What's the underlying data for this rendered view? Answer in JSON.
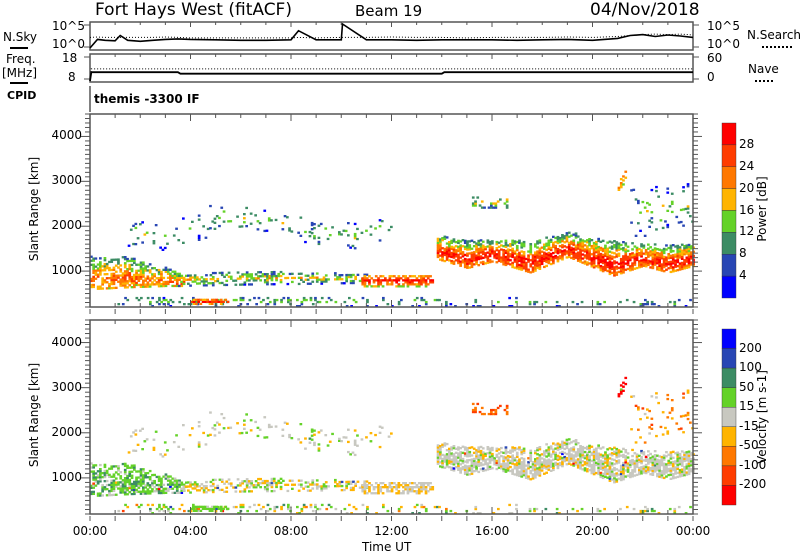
{
  "header": {
    "title": "Fort Hays West (fitACF)",
    "beam": "Beam 19",
    "date": "04/Nov/2018"
  },
  "noise_panel": {
    "left_label": "N.Sky",
    "right_label": "N.Search",
    "left_ticks": [
      "10^5",
      "10^0"
    ],
    "right_ticks": [
      "10^5",
      "10^0"
    ],
    "log_range": [
      0,
      5
    ],
    "hours": [
      0,
      0.3,
      0.6,
      1,
      1.2,
      1.5,
      2,
      2.5,
      3,
      3.5,
      4,
      5,
      6,
      7,
      8,
      8.3,
      9,
      10,
      10.05,
      11,
      12,
      13,
      14,
      15,
      16,
      17,
      18,
      19,
      20,
      21,
      21.5,
      22,
      22.5,
      23,
      23.5,
      24
    ],
    "nsky": [
      0,
      1.8,
      1.6,
      1.5,
      2.6,
      1.6,
      1.4,
      1.6,
      1.8,
      1.9,
      1.8,
      1.7,
      1.6,
      1.6,
      1.7,
      3.6,
      1.7,
      1.7,
      5.0,
      1.7,
      1.7,
      1.6,
      1.7,
      1.7,
      1.7,
      1.6,
      1.7,
      1.8,
      1.6,
      2.0,
      2.6,
      2.8,
      2.4,
      2.7,
      2.5,
      2.2
    ],
    "nsearch": [
      2.2,
      2.3,
      2.2,
      2.2,
      2.2,
      2.2,
      2.2,
      2.2,
      2.3,
      2.2,
      2.1,
      2.1,
      2.1,
      2.1,
      2.1,
      2.2,
      2.1,
      2.2,
      2.2,
      2.2,
      2.3,
      2.2,
      2.2,
      2.1,
      2.2,
      2.2,
      2.2,
      2.3,
      2.2,
      2.4,
      2.6,
      2.8,
      2.9,
      2.8,
      2.9,
      2.7
    ]
  },
  "freq_panel": {
    "left_label": "Freq.",
    "left_unit": "[MHz]",
    "right_label": "Nave",
    "left_ticks": [
      "18",
      "8"
    ],
    "right_ticks": [
      "60",
      "0"
    ],
    "freq_range": [
      8,
      18
    ],
    "nave_range": [
      0,
      60
    ],
    "hours": [
      0,
      0.05,
      3.5,
      3.6,
      14,
      14.1,
      24
    ],
    "freq": [
      8,
      11.4,
      11.4,
      10.8,
      10.8,
      11.4,
      11.4
    ],
    "nave": [
      0,
      28,
      28,
      28,
      28,
      28,
      28
    ]
  },
  "cpid": {
    "label": "CPID",
    "value": "themis -3300 IF"
  },
  "x_axis": {
    "ticks": [
      "00:00",
      "04:00",
      "08:00",
      "12:00",
      "16:00",
      "20:00",
      "00:00"
    ],
    "label": "Time UT"
  },
  "chart_data": [
    {
      "type": "heatmap",
      "name": "Power",
      "ylabel": "Slant Range [km]",
      "xlim_hours": [
        0,
        24
      ],
      "ylim": [
        200,
        4500
      ],
      "yticks": [
        "1000",
        "2000",
        "3000",
        "4000"
      ],
      "colorbar": {
        "title": "Power [dB]",
        "labels": [
          "28",
          "24",
          "20",
          "16",
          "12",
          "8",
          "4"
        ],
        "colors": [
          "#ff0000",
          "#ff3c00",
          "#ff7800",
          "#ffb400",
          "#64d228",
          "#3c8c64",
          "#2846b4",
          "#0000ff"
        ]
      }
    },
    {
      "type": "heatmap",
      "name": "Velocity",
      "ylabel": "Slant Range [km]",
      "xlim_hours": [
        0,
        24
      ],
      "ylim": [
        200,
        4500
      ],
      "yticks": [
        "1000",
        "2000",
        "3000",
        "4000"
      ],
      "colorbar": {
        "title": "Velocity [m s-1]",
        "labels": [
          "200",
          "100",
          "50",
          "15",
          "-15",
          "-50",
          "-100",
          "-200"
        ],
        "colors": [
          "#0000ff",
          "#2846b4",
          "#3c8c64",
          "#64d228",
          "#c8c8c0",
          "#ffb400",
          "#ff7800",
          "#ff3c00",
          "#ff0000"
        ]
      }
    }
  ],
  "echo_regions": [
    {
      "knots": [
        [
          0,
          580,
          1300
        ],
        [
          1.5,
          620,
          1300
        ],
        [
          3,
          650,
          1050
        ],
        [
          3.8,
          650,
          900
        ]
      ],
      "density": 0.75,
      "power_core": 24,
      "power_edge": 8,
      "core_pos": 0.3,
      "velocity": 35,
      "velocity_spread": 30
    },
    {
      "knots": [
        [
          3.5,
          650,
          900
        ],
        [
          6,
          680,
          980
        ],
        [
          9,
          700,
          950
        ],
        [
          11,
          720,
          900
        ]
      ],
      "density": 0.55,
      "power_core": 18,
      "power_edge": 6,
      "core_pos": 0.5,
      "velocity": -8,
      "velocity_spread": 40
    },
    {
      "knots": [
        [
          10.8,
          640,
          900
        ],
        [
          13.6,
          640,
          900
        ]
      ],
      "density": 0.8,
      "power_core": 29,
      "power_edge": 16,
      "core_pos": 0.5,
      "velocity": -14,
      "velocity_spread": 20
    },
    {
      "knots": [
        [
          1,
          200,
          420
        ],
        [
          13.5,
          200,
          420
        ]
      ],
      "density": 0.25,
      "power_core": 14,
      "power_edge": 4,
      "core_pos": 0.5,
      "velocity": 0,
      "velocity_spread": 60
    },
    {
      "knots": [
        [
          4,
          250,
          350
        ],
        [
          5.5,
          250,
          350
        ]
      ],
      "density": 0.8,
      "power_core": 29,
      "power_edge": 20,
      "core_pos": 0.5,
      "velocity": 30,
      "velocity_spread": 20
    },
    {
      "knots": [
        [
          1.5,
          1500,
          2200
        ],
        [
          3,
          1450,
          2000
        ],
        [
          5,
          1800,
          2500
        ],
        [
          7.5,
          1900,
          2300
        ],
        [
          9,
          1500,
          2100
        ],
        [
          10.5,
          1400,
          2100
        ],
        [
          12,
          1800,
          2200
        ]
      ],
      "density": 0.12,
      "power_core": 14,
      "power_edge": 4,
      "core_pos": 0.5,
      "velocity": 0,
      "velocity_spread": 30
    },
    {
      "knots": [
        [
          13.8,
          1250,
          1780
        ],
        [
          15,
          1050,
          1650
        ],
        [
          16,
          1200,
          1700
        ],
        [
          17.5,
          950,
          1650
        ],
        [
          19,
          1300,
          1850
        ],
        [
          20.8,
          880,
          1650
        ],
        [
          22,
          1100,
          1600
        ],
        [
          23,
          950,
          1550
        ],
        [
          24,
          1100,
          1620
        ]
      ],
      "density": 0.85,
      "power_core": 30,
      "power_edge": 8,
      "core_pos": 0.3,
      "velocity": 0,
      "velocity_spread": 22
    },
    {
      "knots": [
        [
          15.2,
          2350,
          2650
        ],
        [
          16.6,
          2350,
          2700
        ]
      ],
      "density": 0.35,
      "power_core": 16,
      "power_edge": 6,
      "core_pos": 0.5,
      "velocity": -90,
      "velocity_spread": 40
    },
    {
      "knots": [
        [
          21,
          2700,
          2900
        ],
        [
          21.3,
          3050,
          3350
        ]
      ],
      "density": 0.7,
      "power_core": 24,
      "power_edge": 14,
      "core_pos": 0.5,
      "velocity": -260,
      "velocity_spread": 40
    },
    {
      "knots": [
        [
          21.5,
          1700,
          2800
        ],
        [
          24,
          2000,
          3000
        ]
      ],
      "density": 0.12,
      "power_core": 14,
      "power_edge": 4,
      "core_pos": 0.5,
      "velocity": -60,
      "velocity_spread": 60
    },
    {
      "knots": [
        [
          13.5,
          200,
          400
        ],
        [
          24,
          200,
          350
        ]
      ],
      "density": 0.15,
      "power_core": 12,
      "power_edge": 4,
      "core_pos": 0.5,
      "velocity": 5,
      "velocity_spread": 50
    }
  ]
}
